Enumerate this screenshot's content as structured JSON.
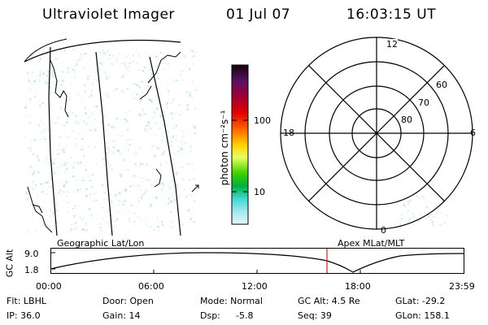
{
  "header": {
    "instrument": "Ultraviolet Imager",
    "date": "01 Jul 07",
    "time": "16:03:15 UT"
  },
  "colorbar": {
    "unit_label": "photon cm⁻²s⁻¹",
    "ticks": [
      "100",
      "10"
    ]
  },
  "polar_plot": {
    "mlt_labels": {
      "top": "12",
      "bottom": "0",
      "left": "18",
      "right": "6"
    },
    "lat_labels": [
      "80",
      "70",
      "60"
    ]
  },
  "orbit_plot": {
    "y_axis_label": "GC Alt",
    "y_ticks": [
      "9.0",
      "1.8"
    ],
    "left_title": "Geographic Lat/Lon",
    "right_title": "Apex MLat/MLT",
    "x_ticks": [
      "00:00",
      "06:00",
      "12:00",
      "18:00",
      "23:59"
    ]
  },
  "status": {
    "filter": "Flt: LBHL",
    "ip": "IP: 36.0",
    "door": "Door: Open",
    "gain": "Gain: 14",
    "mode": "Mode: Normal",
    "dsp": "Dsp:",
    "dsp_value": "-5.8",
    "gc_alt": "GC Alt: 4.5 Re",
    "seq": "Seq: 39",
    "glat": "GLat: -29.2",
    "glon": "GLon: 158.1"
  },
  "colors": {
    "emission": "#bfe3e6",
    "marker": "#cc2222",
    "line": "#000000"
  }
}
